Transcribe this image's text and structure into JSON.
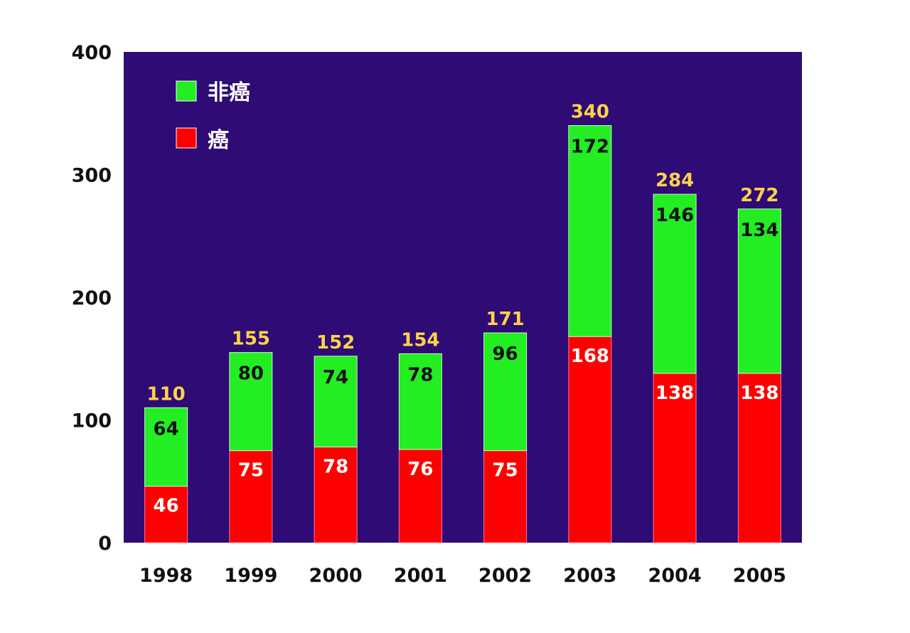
{
  "chart_data": {
    "type": "bar",
    "stacked": true,
    "categories": [
      "1998",
      "1999",
      "2000",
      "2001",
      "2002",
      "2003",
      "2004",
      "2005"
    ],
    "series": [
      {
        "name": "癌",
        "color": "#ff0000",
        "values": [
          46,
          75,
          78,
          76,
          75,
          168,
          138,
          138
        ]
      },
      {
        "name": "非癌",
        "color": "#22ee22",
        "values": [
          64,
          80,
          74,
          78,
          96,
          172,
          146,
          134
        ]
      }
    ],
    "totals": [
      110,
      155,
      152,
      154,
      171,
      340,
      284,
      272
    ],
    "ylim": [
      0,
      400
    ],
    "yticks": [
      "0",
      "100",
      "200",
      "300",
      "400"
    ],
    "grid": false,
    "legend_position": "top-left",
    "plot_background": "#2e0b75",
    "total_label_color": "#ffd24a",
    "cancer_label_color": "#ffffff",
    "noncancer_label_color": "#111111"
  }
}
